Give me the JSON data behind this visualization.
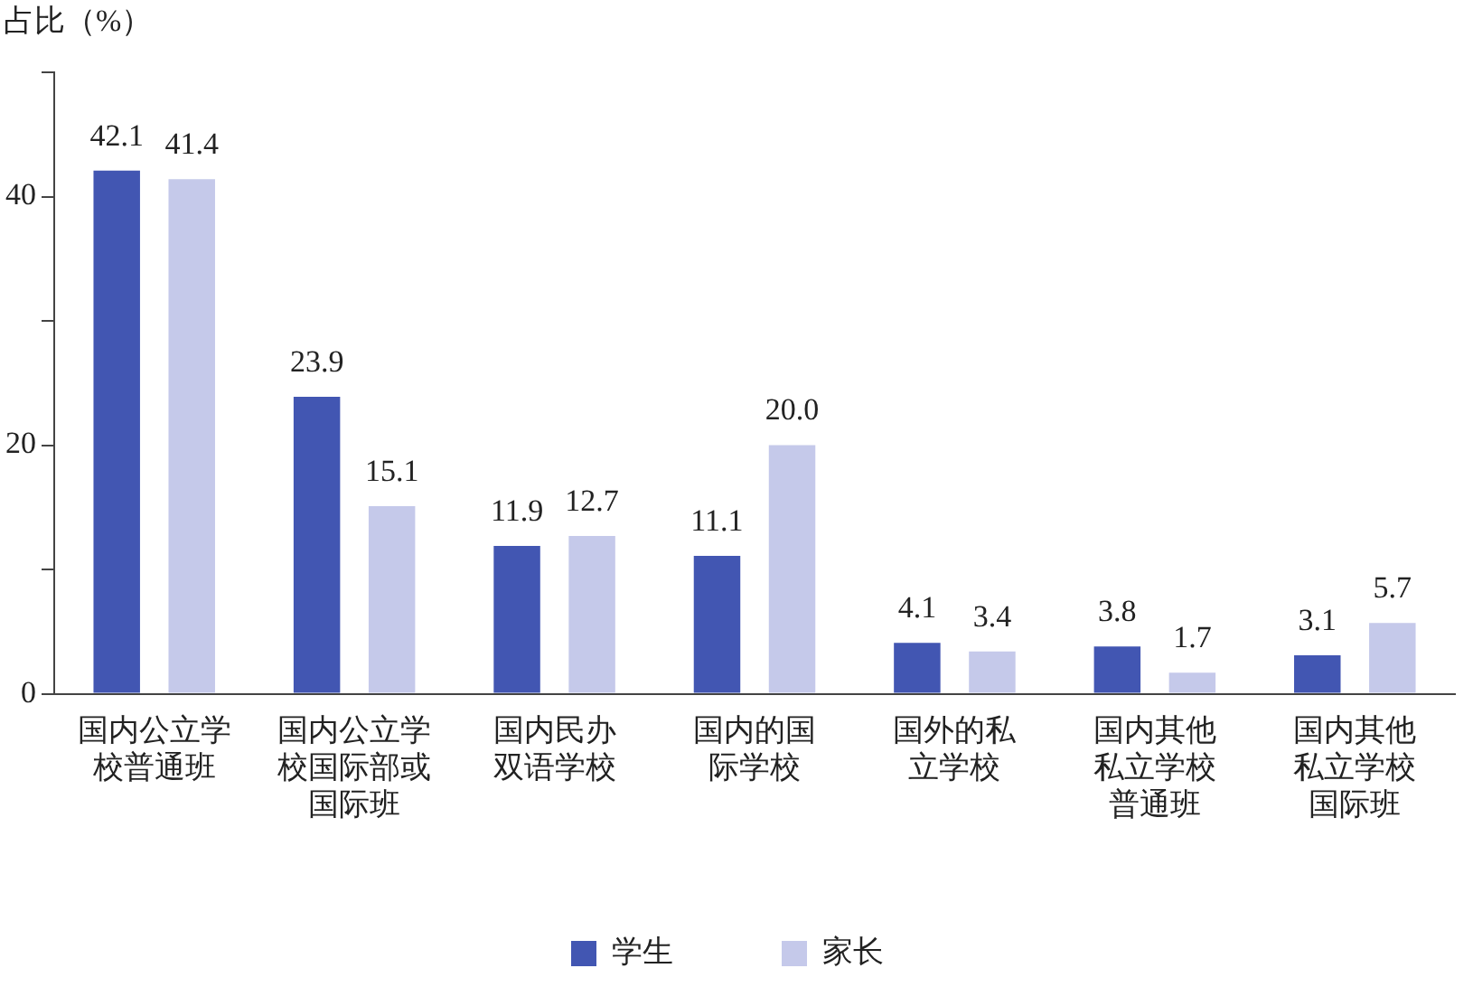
{
  "chart_data": {
    "type": "bar",
    "ylabel": "占比（%）",
    "categories": [
      "国内公立学校普通班",
      "国内公立学校国际部或国际班",
      "国内民办双语学校",
      "国内的国际学校",
      "国外的私立学校",
      "国内其他私立学校普通班",
      "国内其他私立学校国际班"
    ],
    "series": [
      {
        "name": "学生",
        "color": "#4256b2",
        "values": [
          42.1,
          23.9,
          11.9,
          11.1,
          4.1,
          3.8,
          3.1
        ],
        "value_labels": [
          "42.1",
          "23.9",
          "11.9",
          "11.1",
          "4.1",
          "3.8",
          "3.1"
        ]
      },
      {
        "name": "家长",
        "color": "#c5c9ea",
        "values": [
          41.4,
          15.1,
          12.7,
          20.0,
          3.4,
          1.7,
          5.7
        ],
        "value_labels": [
          "41.4",
          "15.1",
          "12.7",
          "20.0",
          "3.4",
          "1.7",
          "5.7"
        ]
      }
    ],
    "ylim": [
      0,
      50
    ],
    "yticks": [
      0,
      {
        "value": 10,
        "label": null
      },
      20,
      {
        "value": 30,
        "label": null
      },
      40,
      {
        "value": 50,
        "label": null
      }
    ],
    "grid": false,
    "legend": "bottom"
  }
}
